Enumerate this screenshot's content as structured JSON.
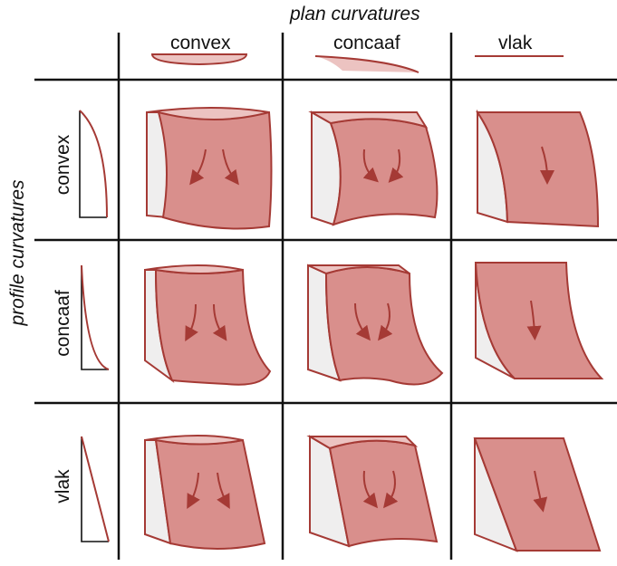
{
  "plan_title": "plan curvatures",
  "profile_title": "profile curvatures",
  "columns": [
    "convex",
    "concaaf",
    "vlak"
  ],
  "rows": [
    "convex",
    "concaaf",
    "vlak"
  ],
  "colors": {
    "fill": "#d98f8c",
    "fill_light": "#ecc3c1",
    "side": "#efeeee",
    "stroke": "#a53a35",
    "grid": "#111111"
  }
}
